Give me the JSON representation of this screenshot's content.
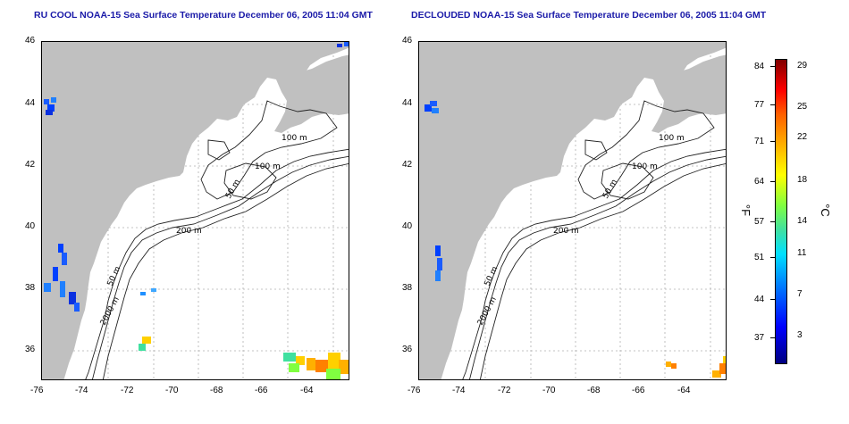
{
  "titles": {
    "left": "RU COOL NOAA-15 Sea Surface Temperature December 06, 2005 11:04 GMT",
    "right": "DECLOUDED NOAA-15 Sea Surface Temperature December 06, 2005 11:04 GMT"
  },
  "axes": {
    "lon_ticks": [
      "-76",
      "-74",
      "-72",
      "-70",
      "-68",
      "-66",
      "-64"
    ],
    "lat_ticks": [
      "46",
      "44",
      "42",
      "40",
      "38",
      "36"
    ]
  },
  "contours": {
    "left": [
      "100 m",
      "100 m",
      "50 m",
      "200 m",
      "50 m",
      "2000 m"
    ],
    "right": [
      "100 m",
      "100 m",
      "50 m",
      "200 m",
      "50 m",
      "2000 m"
    ]
  },
  "colorbar": {
    "fahrenheit_ticks": [
      "84",
      "77",
      "71",
      "64",
      "57",
      "51",
      "44",
      "37"
    ],
    "celsius_ticks": [
      "29",
      "25",
      "22",
      "18",
      "14",
      "11",
      "7",
      "3"
    ],
    "fahrenheit_unit": "°F",
    "celsius_unit": "°C",
    "colors": [
      "#000080",
      "#0000ff",
      "#0080ff",
      "#00e0ff",
      "#80ff40",
      "#ffff00",
      "#ffb000",
      "#ff6000",
      "#ff0000",
      "#800000"
    ]
  }
}
